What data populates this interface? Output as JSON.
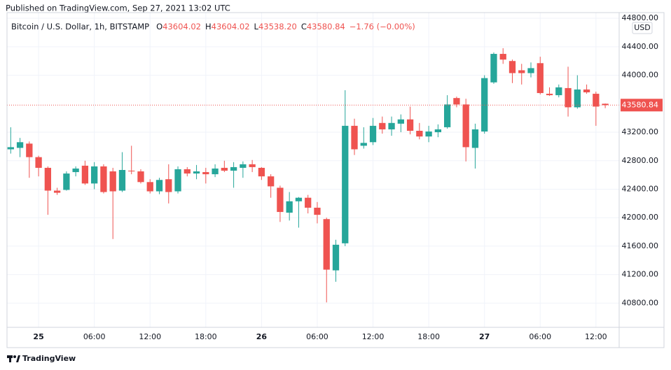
{
  "header": {
    "published": "Published on TradingView.com, Sep 27, 2021 13:02 UTC",
    "symbol": "Bitcoin / U.S. Dollar, 1h, BITSTAMP",
    "ohlc": [
      {
        "label": "O",
        "value": "43604.02"
      },
      {
        "label": "H",
        "value": "43604.02"
      },
      {
        "label": "L",
        "value": "43538.20"
      },
      {
        "label": "C",
        "value": "43580.84"
      }
    ],
    "change": "−1.76 (−0.00%)",
    "currency": "USD"
  },
  "footer": {
    "brand": "TradingView"
  },
  "chart_data": {
    "type": "candlestick",
    "x": [
      -3,
      -2,
      -1,
      0,
      1,
      2,
      3,
      4,
      5,
      6,
      7,
      8,
      9,
      10,
      11,
      12,
      13,
      14,
      15,
      16,
      17,
      18,
      19,
      20,
      21,
      22,
      23,
      24,
      25,
      26,
      27,
      28,
      29,
      30,
      31,
      32,
      33,
      34,
      35,
      36,
      37,
      38,
      39,
      40,
      41,
      42,
      43,
      44,
      45,
      46,
      47,
      48,
      49,
      50,
      51,
      52,
      53,
      54,
      55,
      56,
      57,
      58,
      59,
      60,
      61
    ],
    "series": [
      {
        "up_color": "#26a69a",
        "down_color": "#ef5350",
        "open": [
          42960,
          42980,
          43040,
          42850,
          42700,
          42380,
          42390,
          42640,
          42730,
          42480,
          42720,
          42650,
          42380,
          42660,
          42650,
          42500,
          42370,
          42540,
          42370,
          42680,
          42620,
          42640,
          42610,
          42700,
          42660,
          42700,
          42750,
          42700,
          42580,
          42420,
          42070,
          42230,
          42280,
          42140,
          41980,
          41260,
          41640,
          43290,
          43010,
          43060,
          43330,
          43240,
          43320,
          43380,
          43220,
          43140,
          43200,
          43270,
          43680,
          43590,
          42980,
          43210,
          43900,
          44300,
          44200,
          44070,
          44030,
          44170,
          43740,
          43720,
          43820,
          43550,
          43800,
          43740,
          43600
        ],
        "high": [
          43270,
          43120,
          43070,
          42870,
          42720,
          42420,
          42650,
          42720,
          42800,
          42780,
          42750,
          42700,
          42920,
          43010,
          42680,
          42540,
          42560,
          42750,
          42720,
          42710,
          42740,
          42700,
          42750,
          42800,
          42780,
          42790,
          42810,
          42710,
          42610,
          42450,
          42360,
          42290,
          42320,
          42220,
          42000,
          41690,
          43790,
          43390,
          43270,
          43400,
          43420,
          43420,
          43450,
          43560,
          43330,
          43290,
          43310,
          43720,
          43700,
          43670,
          43320,
          44000,
          44320,
          44380,
          44220,
          44160,
          44180,
          44260,
          43830,
          43870,
          44120,
          44000,
          43870,
          43770,
          43604
        ],
        "low": [
          42900,
          42850,
          42560,
          42580,
          42040,
          42320,
          42380,
          42580,
          42460,
          42400,
          42340,
          41700,
          42360,
          42610,
          42480,
          42340,
          42330,
          42200,
          42340,
          42580,
          42540,
          42480,
          42570,
          42640,
          42420,
          42560,
          42640,
          42530,
          42280,
          41940,
          41960,
          41860,
          42060,
          41920,
          40810,
          41100,
          41600,
          42880,
          42970,
          43020,
          43180,
          43150,
          43200,
          43170,
          43100,
          43060,
          43130,
          43250,
          43550,
          42790,
          42690,
          43180,
          43880,
          44160,
          43890,
          43870,
          43970,
          43730,
          43710,
          43690,
          43420,
          43530,
          43740,
          43290,
          43538
        ],
        "close": [
          42990,
          43060,
          42850,
          42700,
          42380,
          42350,
          42620,
          42690,
          42480,
          42720,
          42360,
          42370,
          42670,
          42650,
          42500,
          42370,
          42530,
          42360,
          42680,
          42620,
          42650,
          42610,
          42690,
          42660,
          42710,
          42750,
          42710,
          42580,
          42440,
          42080,
          42230,
          42280,
          42140,
          42040,
          41270,
          41620,
          43290,
          42960,
          43050,
          43290,
          43240,
          43330,
          43380,
          43220,
          43140,
          43210,
          43240,
          43590,
          43590,
          42990,
          43240,
          43960,
          44300,
          44220,
          44030,
          44030,
          44100,
          43750,
          43720,
          43830,
          43550,
          43800,
          43760,
          43560,
          43581
        ]
      }
    ],
    "last_price": 43580.84,
    "xlim": [
      -3.4,
      62.5
    ],
    "xticks": [
      {
        "value": 0,
        "label": "25"
      },
      {
        "value": 6,
        "label": "06:00"
      },
      {
        "value": 12,
        "label": "12:00"
      },
      {
        "value": 18,
        "label": "18:00"
      },
      {
        "value": 24,
        "label": "26"
      },
      {
        "value": 30,
        "label": "06:00"
      },
      {
        "value": 36,
        "label": "12:00"
      },
      {
        "value": 42,
        "label": "18:00"
      },
      {
        "value": 48,
        "label": "27"
      },
      {
        "value": 54,
        "label": "06:00"
      },
      {
        "value": 60,
        "label": "12:00"
      }
    ],
    "ylim": [
      40460,
      44880
    ],
    "yticks": [
      {
        "value": 40800,
        "label": "40800.00"
      },
      {
        "value": 41200,
        "label": "41200.00"
      },
      {
        "value": 41600,
        "label": "41600.00"
      },
      {
        "value": 42000,
        "label": "42000.00"
      },
      {
        "value": 42400,
        "label": "42400.00"
      },
      {
        "value": 42800,
        "label": "42800.00"
      },
      {
        "value": 43200,
        "label": "43200.00"
      },
      {
        "value": 44000,
        "label": "44000.00"
      },
      {
        "value": 44400,
        "label": "44400.00"
      },
      {
        "value": 44800,
        "label": "44800.00"
      }
    ],
    "grid": true
  }
}
